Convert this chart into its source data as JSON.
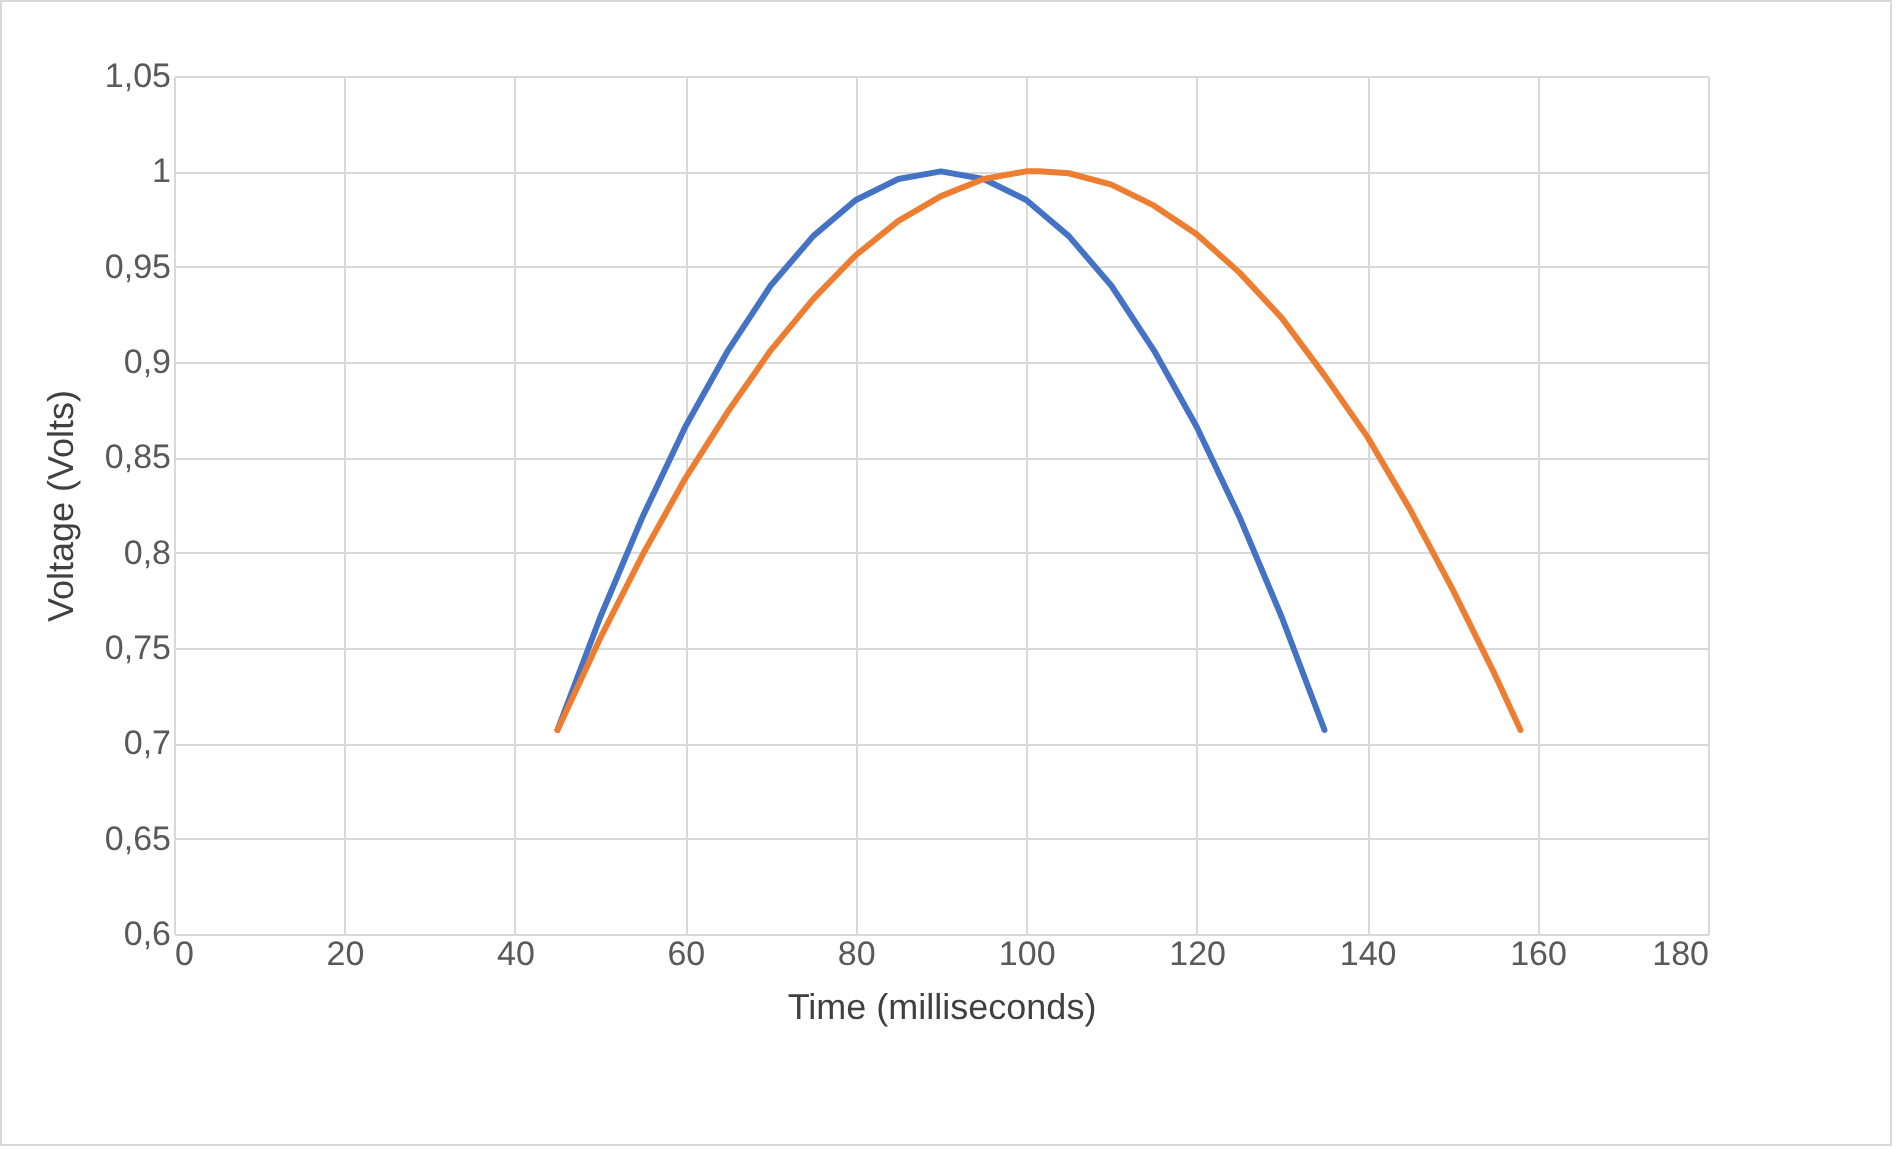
{
  "chart_data": {
    "type": "line",
    "xlabel": "Time (milliseconds)",
    "ylabel": "Voltage (Volts)",
    "xlim": [
      0,
      180
    ],
    "xticks": [
      0,
      20,
      40,
      60,
      80,
      100,
      120,
      140,
      160,
      180
    ],
    "ylim": [
      0.6,
      1.05
    ],
    "yticks": [
      {
        "value": 0.6,
        "label": "0,6"
      },
      {
        "value": 0.65,
        "label": "0,65"
      },
      {
        "value": 0.7,
        "label": "0,7"
      },
      {
        "value": 0.75,
        "label": "0,75"
      },
      {
        "value": 0.8,
        "label": "0,8"
      },
      {
        "value": 0.85,
        "label": "0,85"
      },
      {
        "value": 0.9,
        "label": "0,9"
      },
      {
        "value": 0.95,
        "label": "0,95"
      },
      {
        "value": 1,
        "label": "1"
      },
      {
        "value": 1.05,
        "label": "1,05"
      }
    ],
    "grid": true,
    "marker": "none",
    "line_style": "solid",
    "series": [
      {
        "color": "#4472c4",
        "x": [
          45,
          50,
          55,
          60,
          65,
          70,
          75,
          80,
          85,
          90,
          95,
          100,
          105,
          110,
          115,
          120,
          125,
          130,
          135
        ],
        "values": [
          0.707,
          0.766,
          0.819,
          0.866,
          0.906,
          0.94,
          0.966,
          0.985,
          0.996,
          1,
          0.996,
          0.985,
          0.966,
          0.94,
          0.906,
          0.866,
          0.819,
          0.766,
          0.707
        ]
      },
      {
        "color": "#ed7d31",
        "x": [
          45,
          50,
          55,
          60,
          65,
          70,
          75,
          80,
          85,
          90,
          95,
          100,
          101.5,
          105,
          110,
          115,
          120,
          125,
          130,
          135,
          140,
          145,
          150,
          155,
          158
        ],
        "values": [
          0.707,
          0.755,
          0.799,
          0.839,
          0.874,
          0.906,
          0.933,
          0.956,
          0.974,
          0.987,
          0.996,
          1,
          1,
          0.999,
          0.993,
          0.982,
          0.967,
          0.947,
          0.923,
          0.893,
          0.861,
          0.823,
          0.781,
          0.736,
          0.707
        ]
      }
    ]
  }
}
